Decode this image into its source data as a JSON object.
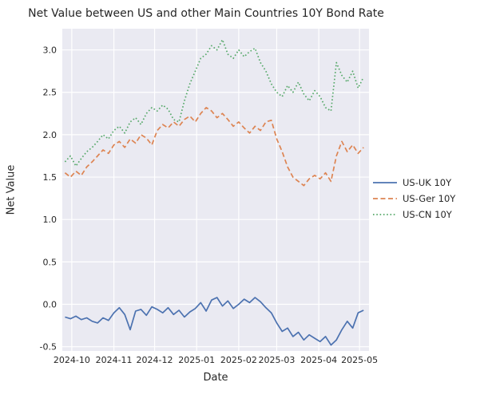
{
  "chart_data": {
    "type": "line",
    "title": "Net Value between US and other Main Countries 10Y Bond Rate",
    "xlabel": "Date",
    "ylabel": "Net Value",
    "background": "#eaeaf2",
    "grid_color": "#ffffff",
    "grid": true,
    "legend_position": "center right outside",
    "xlim": [
      "2024-09-24",
      "2025-05-08"
    ],
    "ylim": [
      -0.55,
      3.25
    ],
    "x_ticks": [
      "2024-10",
      "2024-11",
      "2024-12",
      "2025-01",
      "2025-02",
      "2025-03",
      "2025-04",
      "2025-05"
    ],
    "y_ticks": [
      -0.5,
      0.0,
      0.5,
      1.0,
      1.5,
      2.0,
      2.5,
      3.0
    ],
    "x": [
      "2024-09-26",
      "2024-09-30",
      "2024-10-04",
      "2024-10-08",
      "2024-10-12",
      "2024-10-16",
      "2024-10-20",
      "2024-10-24",
      "2024-10-28",
      "2024-11-01",
      "2024-11-05",
      "2024-11-09",
      "2024-11-13",
      "2024-11-17",
      "2024-11-21",
      "2024-11-25",
      "2024-11-29",
      "2024-12-03",
      "2024-12-07",
      "2024-12-11",
      "2024-12-15",
      "2024-12-19",
      "2024-12-23",
      "2024-12-27",
      "2024-12-31",
      "2025-01-04",
      "2025-01-08",
      "2025-01-12",
      "2025-01-16",
      "2025-01-20",
      "2025-01-24",
      "2025-01-28",
      "2025-02-01",
      "2025-02-05",
      "2025-02-09",
      "2025-02-13",
      "2025-02-17",
      "2025-02-21",
      "2025-02-25",
      "2025-03-01",
      "2025-03-05",
      "2025-03-09",
      "2025-03-13",
      "2025-03-17",
      "2025-03-21",
      "2025-03-25",
      "2025-03-29",
      "2025-04-02",
      "2025-04-06",
      "2025-04-10",
      "2025-04-14",
      "2025-04-18",
      "2025-04-22",
      "2025-04-26",
      "2025-04-30",
      "2025-05-04"
    ],
    "series": [
      {
        "name": "US-UK 10Y",
        "color": "#4c72b0",
        "dash": "solid",
        "values": [
          -0.15,
          -0.17,
          -0.14,
          -0.18,
          -0.16,
          -0.2,
          -0.22,
          -0.16,
          -0.19,
          -0.1,
          -0.04,
          -0.12,
          -0.3,
          -0.08,
          -0.06,
          -0.13,
          -0.03,
          -0.06,
          -0.1,
          -0.04,
          -0.12,
          -0.07,
          -0.15,
          -0.09,
          -0.05,
          0.02,
          -0.08,
          0.05,
          0.08,
          -0.02,
          0.04,
          -0.05,
          0.0,
          0.06,
          0.02,
          0.08,
          0.03,
          -0.04,
          -0.1,
          -0.22,
          -0.32,
          -0.28,
          -0.38,
          -0.33,
          -0.42,
          -0.36,
          -0.4,
          -0.44,
          -0.38,
          -0.48,
          -0.42,
          -0.3,
          -0.2,
          -0.28,
          -0.1,
          -0.07
        ]
      },
      {
        "name": "US-Ger 10Y",
        "color": "#dd8452",
        "dash": "dashed",
        "values": [
          1.55,
          1.5,
          1.57,
          1.52,
          1.62,
          1.68,
          1.75,
          1.82,
          1.78,
          1.88,
          1.92,
          1.85,
          1.95,
          1.9,
          2.0,
          1.96,
          1.88,
          2.05,
          2.12,
          2.08,
          2.15,
          2.1,
          2.18,
          2.22,
          2.15,
          2.25,
          2.32,
          2.28,
          2.2,
          2.25,
          2.18,
          2.1,
          2.15,
          2.08,
          2.02,
          2.1,
          2.05,
          2.15,
          2.17,
          1.95,
          1.8,
          1.62,
          1.5,
          1.45,
          1.4,
          1.48,
          1.52,
          1.48,
          1.55,
          1.45,
          1.75,
          1.92,
          1.8,
          1.88,
          1.78,
          1.85
        ]
      },
      {
        "name": "US-CN 10Y",
        "color": "#55a868",
        "dash": "dotted",
        "values": [
          1.68,
          1.75,
          1.63,
          1.72,
          1.8,
          1.85,
          1.92,
          2.0,
          1.95,
          2.05,
          2.1,
          2.02,
          2.15,
          2.2,
          2.12,
          2.25,
          2.32,
          2.28,
          2.35,
          2.3,
          2.18,
          2.15,
          2.4,
          2.6,
          2.75,
          2.9,
          2.95,
          3.05,
          3.0,
          3.12,
          2.95,
          2.9,
          3.0,
          2.92,
          2.98,
          3.02,
          2.85,
          2.75,
          2.6,
          2.5,
          2.45,
          2.58,
          2.5,
          2.62,
          2.48,
          2.4,
          2.52,
          2.45,
          2.32,
          2.28,
          2.85,
          2.7,
          2.62,
          2.75,
          2.55,
          2.68
        ]
      }
    ]
  }
}
